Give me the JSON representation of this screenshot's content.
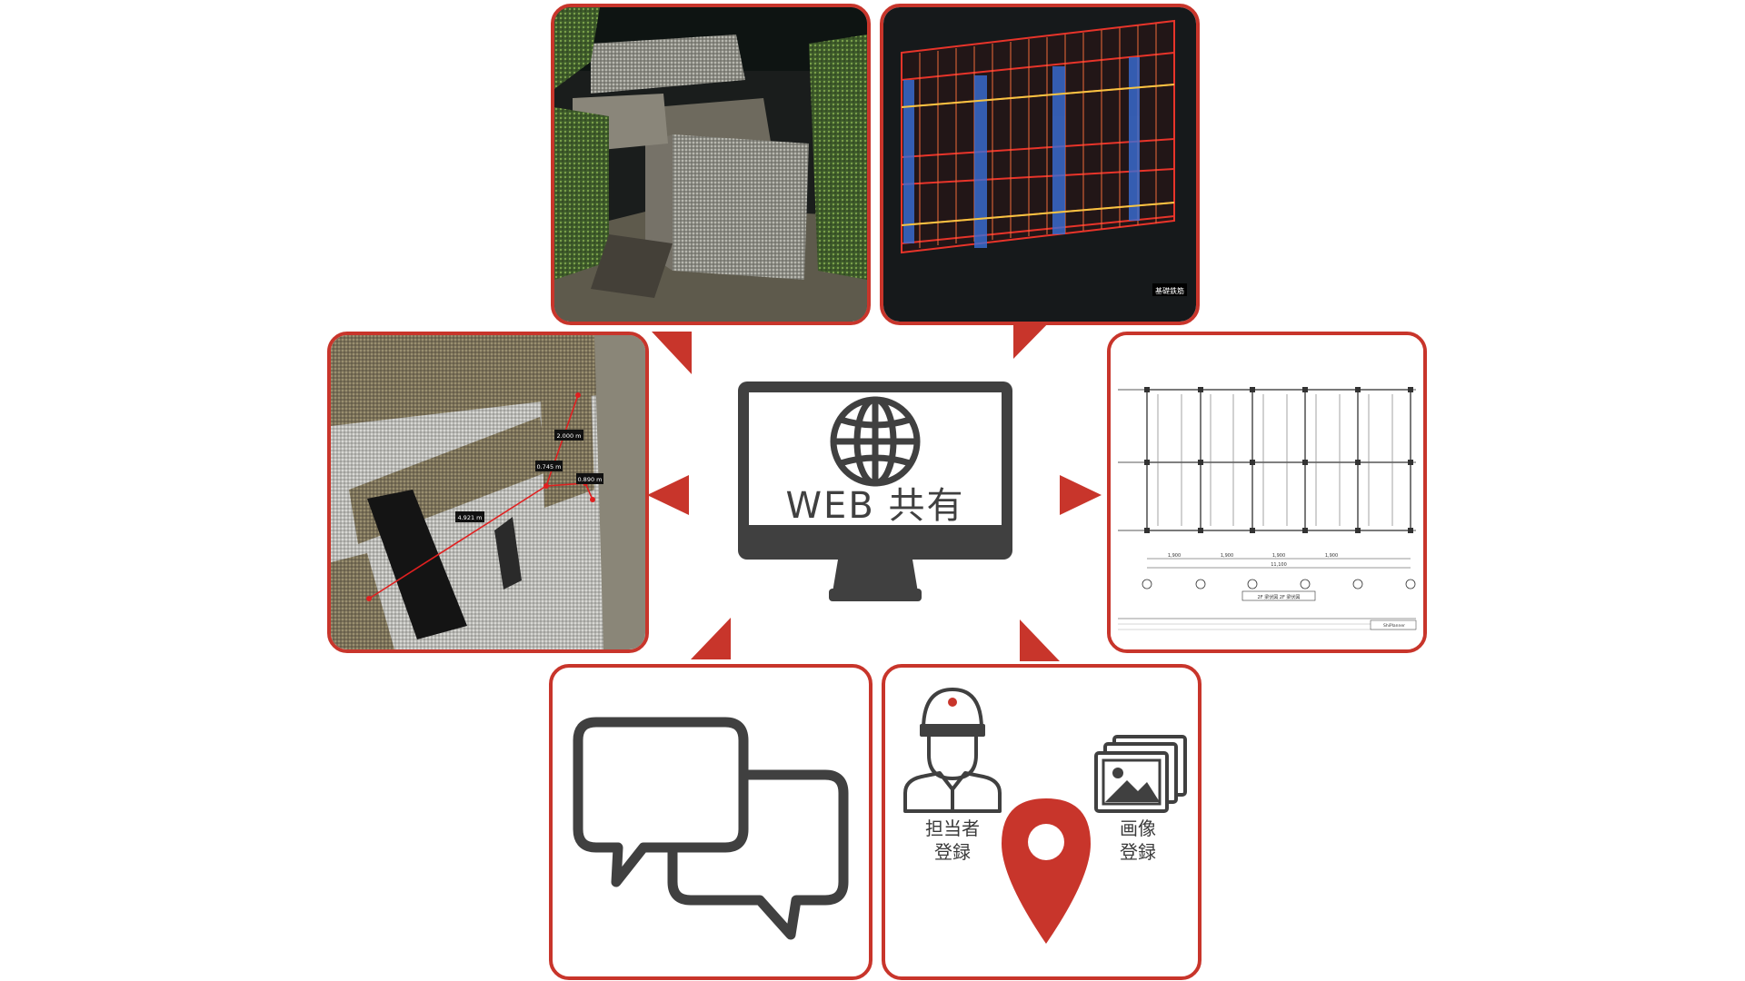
{
  "hub": {
    "label": "WEB 共有",
    "icon": "globe-monitor-icon"
  },
  "panels": {
    "point_cloud_exterior": {
      "icon": "point-cloud-exterior-image"
    },
    "rebar_model": {
      "label": "基礎鉄筋",
      "icon": "rebar-3d-model-image"
    },
    "measurement": {
      "icon": "point-cloud-measurement-image",
      "measurements": [
        "2.000 m",
        "0.745 m",
        "0.890 m",
        "4.921 m"
      ]
    },
    "drawing": {
      "icon": "structural-drawing-image",
      "dimensions": [
        "1,900",
        "1,900",
        "1,900",
        "1,900"
      ],
      "total": "11,100",
      "title": "2F 梁伏図 2F 梁伏図",
      "stamp": "ShiPlanner"
    },
    "chat": {
      "icon": "chat-bubbles-icon"
    },
    "registration": {
      "person_label_1": "担当者",
      "person_label_2": "登録",
      "image_label_1": "画像",
      "image_label_2": "登録",
      "icons": [
        "worker-icon",
        "location-pin-icon",
        "photo-stack-icon"
      ]
    }
  },
  "colors": {
    "accent": "#c8352b",
    "icon_dark": "#404040",
    "background": "#ffffff"
  }
}
